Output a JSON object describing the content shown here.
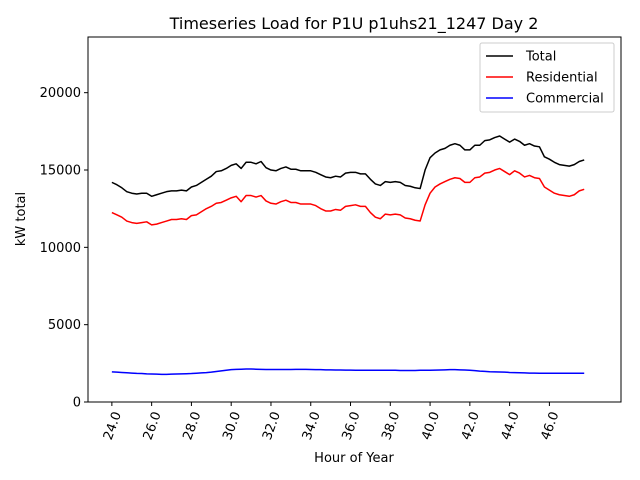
{
  "chart_data": {
    "type": "line",
    "title": "Timeseries Load for P1U p1uhs21_1247  Day 2",
    "xlabel": "Hour of Year",
    "ylabel": "kW total",
    "xlim": [
      22.8,
      49.6
    ],
    "ylim": [
      0,
      23600
    ],
    "xticks": [
      24,
      26,
      28,
      30,
      32,
      34,
      36,
      38,
      40,
      42,
      44,
      46
    ],
    "xtick_labels": [
      "24.0",
      "26.0",
      "28.0",
      "30.0",
      "32.0",
      "34.0",
      "36.0",
      "38.0",
      "40.0",
      "42.0",
      "44.0",
      "46.0"
    ],
    "yticks": [
      0,
      5000,
      10000,
      15000,
      20000
    ],
    "ytick_labels": [
      "0",
      "5000",
      "10000",
      "15000",
      "20000"
    ],
    "legend_position": "top-right",
    "x": [
      24.0,
      24.25,
      24.5,
      24.75,
      25.0,
      25.25,
      25.5,
      25.75,
      26.0,
      26.25,
      26.5,
      26.75,
      27.0,
      27.25,
      27.5,
      27.75,
      28.0,
      28.25,
      28.5,
      28.75,
      29.0,
      29.25,
      29.5,
      29.75,
      30.0,
      30.25,
      30.5,
      30.75,
      31.0,
      31.25,
      31.5,
      31.75,
      32.0,
      32.25,
      32.5,
      32.75,
      33.0,
      33.25,
      33.5,
      33.75,
      34.0,
      34.25,
      34.5,
      34.75,
      35.0,
      35.25,
      35.5,
      35.75,
      36.0,
      36.25,
      36.5,
      36.75,
      37.0,
      37.25,
      37.5,
      37.75,
      38.0,
      38.25,
      38.5,
      38.75,
      39.0,
      39.25,
      39.5,
      39.75,
      40.0,
      40.25,
      40.5,
      40.75,
      41.0,
      41.25,
      41.5,
      41.75,
      42.0,
      42.25,
      42.5,
      42.75,
      43.0,
      43.25,
      43.5,
      43.75,
      44.0,
      44.25,
      44.5,
      44.75,
      45.0,
      45.25,
      45.5,
      45.75,
      46.0,
      46.25,
      46.5,
      46.75,
      47.0,
      47.25,
      47.5,
      47.75
    ],
    "series": [
      {
        "name": "Total",
        "color": "#000000",
        "values": [
          14200,
          14050,
          13850,
          13600,
          13500,
          13450,
          13500,
          13500,
          13300,
          13400,
          13500,
          13600,
          13650,
          13650,
          13700,
          13650,
          13900,
          14000,
          14200,
          14400,
          14600,
          14900,
          14950,
          15100,
          15300,
          15400,
          15100,
          15500,
          15500,
          15400,
          15550,
          15150,
          15000,
          14950,
          15100,
          15200,
          15050,
          15050,
          14950,
          14950,
          14950,
          14850,
          14700,
          14550,
          14500,
          14600,
          14550,
          14800,
          14850,
          14850,
          14750,
          14750,
          14400,
          14100,
          14000,
          14250,
          14200,
          14250,
          14200,
          14000,
          13950,
          13850,
          13800,
          15000,
          15800,
          16100,
          16300,
          16400,
          16600,
          16700,
          16600,
          16300,
          16300,
          16600,
          16600,
          16900,
          16950,
          17100,
          17200,
          17000,
          16800,
          17000,
          16850,
          16600,
          16700,
          16550,
          16500,
          15850,
          15700,
          15500,
          15350,
          15300,
          15250,
          15350,
          15550,
          15650
        ]
      },
      {
        "name": "Residential",
        "color": "#ff0000",
        "values": [
          12250,
          12100,
          11950,
          11700,
          11600,
          11550,
          11600,
          11650,
          11450,
          11500,
          11600,
          11700,
          11800,
          11800,
          11850,
          11800,
          12050,
          12100,
          12300,
          12500,
          12650,
          12850,
          12900,
          13050,
          13200,
          13300,
          12950,
          13350,
          13350,
          13250,
          13350,
          13000,
          12850,
          12800,
          12950,
          13050,
          12900,
          12900,
          12800,
          12800,
          12800,
          12700,
          12500,
          12350,
          12350,
          12450,
          12400,
          12650,
          12700,
          12750,
          12650,
          12650,
          12250,
          11950,
          11850,
          12150,
          12100,
          12150,
          12100,
          11900,
          11850,
          11750,
          11700,
          12750,
          13500,
          13900,
          14100,
          14250,
          14400,
          14500,
          14450,
          14200,
          14200,
          14500,
          14550,
          14800,
          14850,
          15000,
          15100,
          14900,
          14700,
          14950,
          14800,
          14550,
          14650,
          14500,
          14450,
          13900,
          13700,
          13500,
          13400,
          13350,
          13300,
          13400,
          13650,
          13750
        ]
      },
      {
        "name": "Commercial",
        "color": "#0000ff",
        "values": [
          1950,
          1930,
          1910,
          1890,
          1870,
          1850,
          1840,
          1820,
          1810,
          1800,
          1790,
          1790,
          1800,
          1810,
          1820,
          1830,
          1840,
          1860,
          1880,
          1900,
          1930,
          1970,
          2010,
          2050,
          2090,
          2110,
          2120,
          2130,
          2130,
          2120,
          2110,
          2100,
          2100,
          2100,
          2100,
          2100,
          2100,
          2110,
          2110,
          2110,
          2100,
          2090,
          2090,
          2080,
          2080,
          2070,
          2070,
          2060,
          2060,
          2050,
          2050,
          2050,
          2050,
          2050,
          2050,
          2050,
          2050,
          2050,
          2040,
          2040,
          2040,
          2040,
          2050,
          2050,
          2050,
          2060,
          2070,
          2080,
          2090,
          2090,
          2080,
          2070,
          2050,
          2030,
          2000,
          1980,
          1960,
          1950,
          1940,
          1930,
          1910,
          1900,
          1890,
          1880,
          1870,
          1870,
          1860,
          1860,
          1860,
          1860,
          1860,
          1860,
          1860,
          1860,
          1860,
          1860
        ]
      }
    ]
  }
}
